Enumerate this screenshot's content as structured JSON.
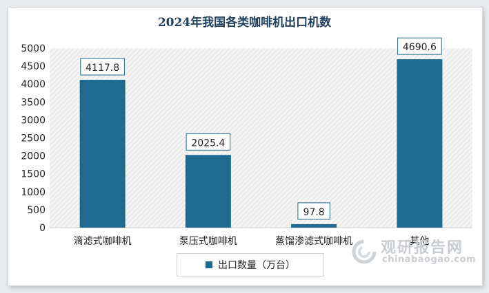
{
  "colors": {
    "bar": "#1e6b8f",
    "title": "#1f3f5f",
    "watermark": "#c9ccd0"
  },
  "chart_data": {
    "type": "bar",
    "title": "2024年我国各类咖啡机出口机数",
    "categories": [
      "滴滤式咖啡机",
      "泵压式咖啡机",
      "蒸馏渗滤式咖啡机",
      "其他"
    ],
    "series": [
      {
        "name": "出口数量（万台）",
        "values": [
          4117.8,
          2025.4,
          97.8,
          4690.6
        ]
      }
    ],
    "data_labels": [
      "4117.8",
      "2025.4",
      "97.8",
      "4690.6"
    ],
    "ylim": [
      0,
      5000
    ],
    "yticks": [
      0,
      500,
      1000,
      1500,
      2000,
      2500,
      3000,
      3500,
      4000,
      4500,
      5000
    ],
    "xlabel": "",
    "ylabel": "",
    "grid": false,
    "legend": "bottom-center"
  },
  "watermark": {
    "name": "观研报告网",
    "url": "chinabaogao.com",
    "icon": "swirl-logo-icon"
  }
}
